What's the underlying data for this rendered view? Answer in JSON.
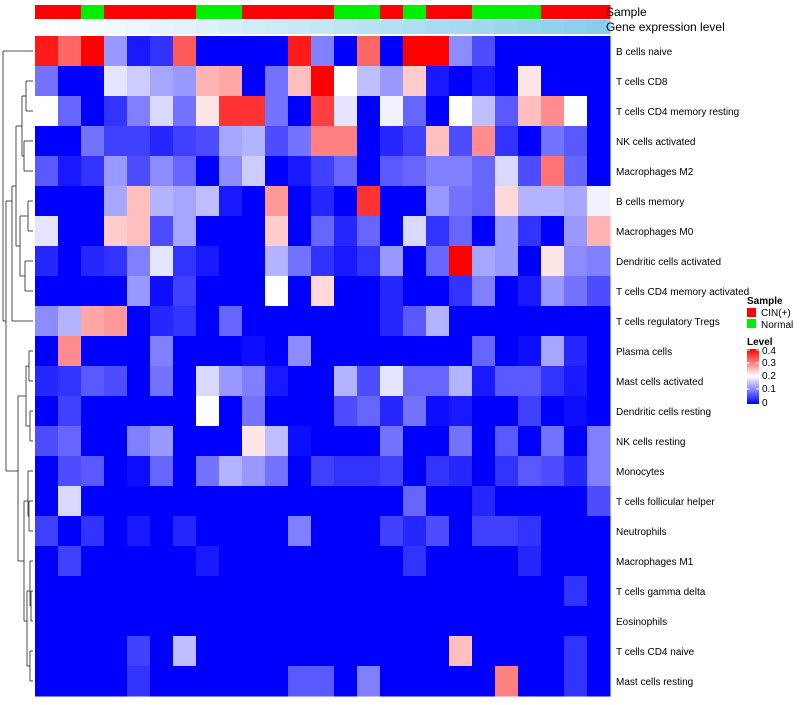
{
  "chart_data": {
    "type": "heatmap",
    "title": "",
    "annotation_tracks": [
      "Sample",
      "Gene expression level"
    ],
    "sample_groups": [
      "CIN(+)",
      "CIN(+)",
      "Normal",
      "CIN(+)",
      "CIN(+)",
      "CIN(+)",
      "CIN(+)",
      "Normal",
      "Normal",
      "CIN(+)",
      "CIN(+)",
      "CIN(+)",
      "CIN(+)",
      "Normal",
      "Normal",
      "CIN(+)",
      "Normal",
      "CIN(+)",
      "CIN(+)",
      "Normal",
      "Normal",
      "Normal",
      "CIN(+)",
      "CIN(+)",
      "CIN(+)"
    ],
    "gene_expression_level": [
      0.0,
      0.04,
      0.08,
      0.13,
      0.17,
      0.21,
      0.25,
      0.29,
      0.33,
      0.38,
      0.42,
      0.46,
      0.5,
      0.54,
      0.58,
      0.63,
      0.67,
      0.71,
      0.75,
      0.79,
      0.83,
      0.88,
      0.92,
      0.96,
      1.0
    ],
    "row_labels": [
      "B cells naive",
      "T cells CD8",
      "T cells CD4 memory resting",
      "NK cells activated",
      "Macrophages M2",
      "B cells memory",
      "Macrophages M0",
      "Dendritic cells activated",
      "T cells CD4 memory activated",
      "T cells regulatory  Tregs",
      "Plasma cells",
      "Mast cells activated",
      "Dendritic cells resting",
      "NK cells resting",
      "Monocytes",
      "T cells follicular helper",
      "Neutrophils",
      "Macrophages M1",
      "T cells gamma delta",
      "Eosinophils",
      "T cells CD4 naive",
      "Mast cells resting"
    ],
    "values": [
      [
        0.38,
        0.32,
        0.4,
        0.12,
        0.02,
        0.04,
        0.33,
        0.0,
        0.0,
        0.0,
        0.0,
        0.38,
        0.1,
        0.0,
        0.32,
        0.0,
        0.4,
        0.4,
        0.11,
        0.06,
        0.0,
        0.0,
        0.0,
        0.0,
        0.0
      ],
      [
        0.09,
        0.0,
        0.0,
        0.18,
        0.16,
        0.13,
        0.12,
        0.26,
        0.27,
        0.0,
        0.09,
        0.25,
        0.4,
        0.2,
        0.15,
        0.12,
        0.24,
        0.02,
        0.0,
        0.02,
        0.0,
        0.22,
        0.0,
        0.0,
        0.0
      ],
      [
        0.2,
        0.08,
        0.0,
        0.04,
        0.1,
        0.17,
        0.09,
        0.22,
        0.36,
        0.36,
        0.09,
        0.0,
        0.35,
        0.18,
        0.0,
        0.19,
        0.08,
        0.0,
        0.2,
        0.15,
        0.07,
        0.25,
        0.29,
        0.2,
        0.0
      ],
      [
        0.0,
        0.0,
        0.09,
        0.05,
        0.05,
        0.03,
        0.05,
        0.06,
        0.13,
        0.14,
        0.06,
        0.09,
        0.3,
        0.3,
        0.0,
        0.03,
        0.05,
        0.25,
        0.06,
        0.29,
        0.04,
        0.0,
        0.09,
        0.07,
        0.0
      ],
      [
        0.07,
        0.02,
        0.04,
        0.12,
        0.06,
        0.11,
        0.08,
        0.0,
        0.11,
        0.16,
        0.0,
        0.02,
        0.05,
        0.08,
        0.0,
        0.07,
        0.08,
        0.1,
        0.1,
        0.08,
        0.17,
        0.06,
        0.31,
        0.08,
        0.0
      ],
      [
        0.0,
        0.0,
        0.0,
        0.13,
        0.25,
        0.14,
        0.13,
        0.15,
        0.02,
        0.0,
        0.28,
        0.0,
        0.03,
        0.0,
        0.36,
        0.0,
        0.0,
        0.12,
        0.09,
        0.08,
        0.23,
        0.14,
        0.14,
        0.13,
        0.19
      ],
      [
        0.18,
        0.0,
        0.0,
        0.24,
        0.25,
        0.06,
        0.13,
        0.0,
        0.0,
        0.0,
        0.24,
        0.0,
        0.08,
        0.03,
        0.08,
        0.0,
        0.17,
        0.04,
        0.08,
        0.0,
        0.12,
        0.04,
        0.0,
        0.12,
        0.26
      ],
      [
        0.03,
        0.0,
        0.03,
        0.04,
        0.1,
        0.18,
        0.04,
        0.02,
        0.0,
        0.0,
        0.14,
        0.09,
        0.04,
        0.02,
        0.04,
        0.12,
        0.0,
        0.08,
        0.4,
        0.13,
        0.12,
        0.0,
        0.22,
        0.11,
        0.1
      ],
      [
        0.0,
        0.0,
        0.0,
        0.0,
        0.12,
        0.01,
        0.05,
        0.0,
        0.0,
        0.0,
        0.2,
        0.0,
        0.23,
        0.0,
        0.0,
        0.03,
        0.0,
        0.0,
        0.04,
        0.1,
        0.0,
        0.02,
        0.12,
        0.09,
        0.06
      ],
      [
        0.11,
        0.14,
        0.27,
        0.28,
        0.0,
        0.03,
        0.04,
        0.0,
        0.08,
        0.0,
        0.0,
        0.0,
        0.0,
        0.0,
        0.0,
        0.03,
        0.07,
        0.14,
        0.0,
        0.0,
        0.0,
        0.0,
        0.0,
        0.0,
        0.0
      ],
      [
        0.0,
        0.29,
        0.0,
        0.0,
        0.0,
        0.1,
        0.0,
        0.0,
        0.0,
        0.01,
        0.0,
        0.11,
        0.0,
        0.0,
        0.0,
        0.0,
        0.0,
        0.0,
        0.0,
        0.08,
        0.0,
        0.01,
        0.13,
        0.03,
        0.0
      ],
      [
        0.03,
        0.04,
        0.07,
        0.06,
        0.0,
        0.09,
        0.0,
        0.17,
        0.12,
        0.1,
        0.02,
        0.0,
        0.0,
        0.14,
        0.06,
        0.18,
        0.08,
        0.08,
        0.14,
        0.02,
        0.07,
        0.07,
        0.04,
        0.02,
        0.0
      ],
      [
        0.0,
        0.05,
        0.0,
        0.0,
        0.0,
        0.0,
        0.0,
        0.2,
        0.0,
        0.09,
        0.0,
        0.0,
        0.0,
        0.06,
        0.08,
        0.03,
        0.09,
        0.01,
        0.02,
        0.0,
        0.0,
        0.05,
        0.0,
        0.01,
        0.0
      ],
      [
        0.06,
        0.08,
        0.0,
        0.0,
        0.1,
        0.12,
        0.0,
        0.0,
        0.0,
        0.22,
        0.15,
        0.01,
        0.0,
        0.0,
        0.0,
        0.09,
        0.0,
        0.0,
        0.09,
        0.0,
        0.07,
        0.0,
        0.09,
        0.0,
        0.1
      ],
      [
        0.0,
        0.06,
        0.07,
        0.0,
        0.01,
        0.08,
        0.0,
        0.09,
        0.14,
        0.12,
        0.09,
        0.0,
        0.05,
        0.04,
        0.04,
        0.05,
        0.0,
        0.04,
        0.03,
        0.0,
        0.04,
        0.07,
        0.06,
        0.03,
        0.1
      ],
      [
        0.0,
        0.17,
        0.0,
        0.0,
        0.0,
        0.0,
        0.0,
        0.0,
        0.0,
        0.0,
        0.0,
        0.0,
        0.0,
        0.0,
        0.0,
        0.0,
        0.08,
        0.0,
        0.0,
        0.03,
        0.0,
        0.0,
        0.0,
        0.0,
        0.06
      ],
      [
        0.05,
        0.0,
        0.04,
        0.0,
        0.02,
        0.0,
        0.03,
        0.0,
        0.0,
        0.0,
        0.0,
        0.1,
        0.0,
        0.0,
        0.0,
        0.05,
        0.03,
        0.06,
        0.0,
        0.05,
        0.05,
        0.04,
        0.0,
        0.0,
        0.0
      ],
      [
        0.0,
        0.05,
        0.0,
        0.0,
        0.0,
        0.0,
        0.0,
        0.02,
        0.0,
        0.0,
        0.0,
        0.0,
        0.0,
        0.0,
        0.0,
        0.0,
        0.04,
        0.0,
        0.0,
        0.0,
        0.0,
        0.03,
        0.0,
        0.0,
        0.0
      ],
      [
        0.0,
        0.0,
        0.0,
        0.0,
        0.0,
        0.0,
        0.0,
        0.0,
        0.0,
        0.0,
        0.0,
        0.0,
        0.0,
        0.0,
        0.0,
        0.0,
        0.0,
        0.0,
        0.0,
        0.0,
        0.0,
        0.0,
        0.0,
        0.04,
        0.0
      ],
      [
        0.0,
        0.0,
        0.0,
        0.0,
        0.0,
        0.0,
        0.0,
        0.0,
        0.0,
        0.0,
        0.0,
        0.0,
        0.0,
        0.0,
        0.0,
        0.0,
        0.0,
        0.0,
        0.0,
        0.0,
        0.0,
        0.0,
        0.0,
        0.0,
        0.0
      ],
      [
        0.0,
        0.0,
        0.0,
        0.0,
        0.05,
        0.0,
        0.15,
        0.0,
        0.0,
        0.0,
        0.0,
        0.0,
        0.0,
        0.0,
        0.0,
        0.0,
        0.0,
        0.0,
        0.25,
        0.0,
        0.0,
        0.0,
        0.0,
        0.04,
        0.0
      ],
      [
        0.0,
        0.0,
        0.0,
        0.0,
        0.04,
        0.0,
        0.0,
        0.0,
        0.0,
        0.0,
        0.0,
        0.07,
        0.07,
        0.0,
        0.1,
        0.0,
        0.0,
        0.0,
        0.0,
        0.0,
        0.3,
        0.0,
        0.0,
        0.04,
        0.0
      ]
    ],
    "legend": {
      "sample_title": "Sample",
      "sample_entries": [
        {
          "label": "CIN(+)",
          "color": "#ff0000"
        },
        {
          "label": "Normal",
          "color": "#00ee00"
        }
      ],
      "level_title": "Level",
      "level_ticks": [
        "0.4",
        "0.3",
        "0.2",
        "0.1",
        "0"
      ],
      "level_range": [
        0,
        0.4
      ],
      "placement": "right"
    },
    "color_scale": {
      "low": "#0000ff",
      "mid": "#ffffff",
      "high": "#ff0000"
    },
    "expression_gradient": {
      "low": "#ffffff",
      "high": "#87ceeb"
    },
    "dendrogram": "rows, left side"
  }
}
